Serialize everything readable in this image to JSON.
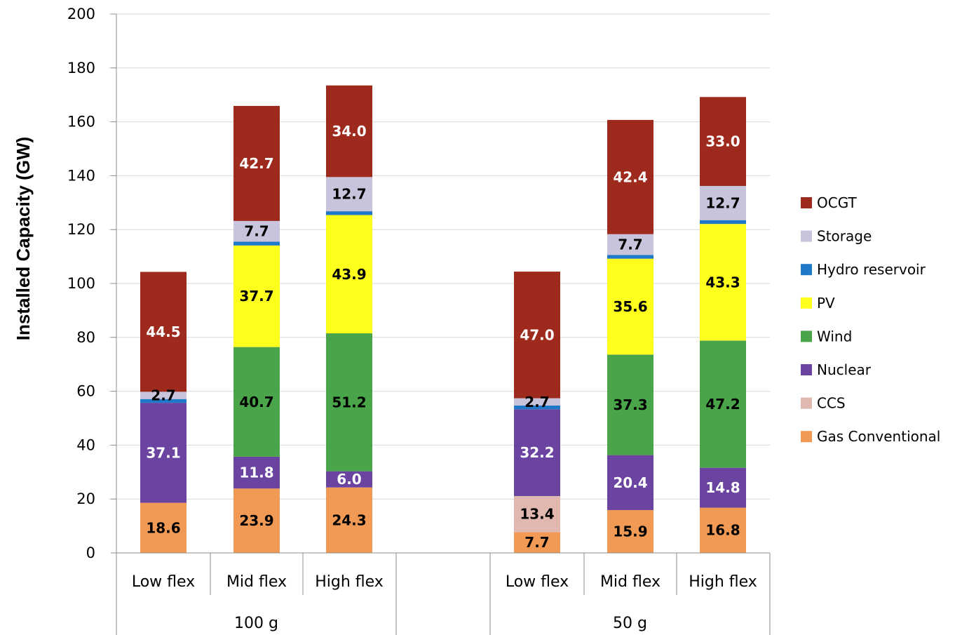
{
  "chart_data": {
    "type": "bar",
    "stacked": true,
    "ylabel": "Installed Capacity (GW)",
    "ylim": [
      0,
      200
    ],
    "yticks": [
      0,
      20,
      40,
      60,
      80,
      100,
      120,
      140,
      160,
      180,
      200
    ],
    "grid": true,
    "legend_position": "right",
    "groups": [
      {
        "label": "100 g",
        "categories": [
          "Low flex",
          "Mid flex",
          "High flex"
        ]
      },
      {
        "label": "50 g",
        "categories": [
          "Low flex",
          "Mid flex",
          "High flex"
        ]
      }
    ],
    "series": [
      {
        "name": "Gas Conventional",
        "color": "#f09a55",
        "label_color": "#000000",
        "values": [
          18.6,
          23.9,
          24.3,
          7.7,
          15.9,
          16.8
        ],
        "labels": [
          "18.6",
          "23.9",
          "24.3",
          "7.7",
          "15.9",
          "16.8"
        ]
      },
      {
        "name": "CCS",
        "color": "#e0b8b0",
        "label_color": "#000000",
        "values": [
          0,
          0,
          0,
          13.4,
          0,
          0
        ],
        "labels": [
          "",
          "",
          "",
          "13.4",
          "",
          ""
        ]
      },
      {
        "name": "Nuclear",
        "color": "#6a44a0",
        "label_color": "#ffffff",
        "values": [
          37.1,
          11.8,
          6.0,
          32.2,
          20.4,
          14.8
        ],
        "labels": [
          "37.1",
          "11.8",
          "6.0",
          "32.2",
          "20.4",
          "14.8"
        ]
      },
      {
        "name": "Wind",
        "color": "#4aa54a",
        "label_color": "#000000",
        "values": [
          0,
          40.7,
          51.2,
          0,
          37.3,
          47.2
        ],
        "labels": [
          "",
          "40.7",
          "51.2",
          "",
          "37.3",
          "47.2"
        ]
      },
      {
        "name": "PV",
        "color": "#ffff1e",
        "label_color": "#000000",
        "values": [
          0,
          37.7,
          43.9,
          0,
          35.6,
          43.3
        ],
        "labels": [
          "",
          "37.7",
          "43.9",
          "",
          "35.6",
          "43.3"
        ]
      },
      {
        "name": "Hydro reservoir",
        "color": "#1f78c8",
        "label_color": "#000000",
        "values": [
          1.4,
          1.4,
          1.4,
          1.4,
          1.4,
          1.4
        ],
        "labels": [
          "",
          "",
          "",
          "",
          "",
          ""
        ]
      },
      {
        "name": "Storage",
        "color": "#c8c4dc",
        "label_color": "#000000",
        "values": [
          2.7,
          7.7,
          12.7,
          2.7,
          7.7,
          12.7
        ],
        "labels": [
          "2.7",
          "7.7",
          "12.7",
          "2.7",
          "7.7",
          "12.7"
        ]
      },
      {
        "name": "OCGT",
        "color": "#9e2a1e",
        "label_color": "#ffffff",
        "values": [
          44.5,
          42.7,
          34.0,
          47.0,
          42.4,
          33.0
        ],
        "labels": [
          "44.5",
          "42.7",
          "34.0",
          "47.0",
          "42.4",
          "33.0"
        ]
      }
    ]
  }
}
